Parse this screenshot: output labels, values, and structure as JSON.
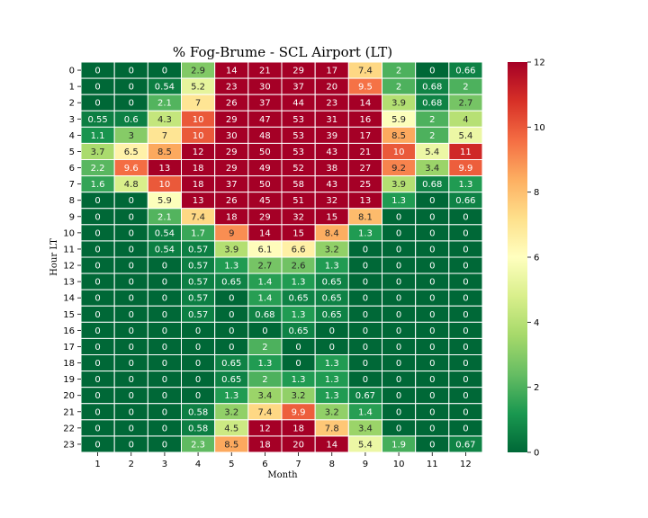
{
  "chart_data": {
    "type": "heatmap",
    "title": "% Fog-Brume - SCL Airport (LT)",
    "xlabel": "Month",
    "ylabel": "Hour LT",
    "x_categories": [
      "1",
      "2",
      "3",
      "4",
      "5",
      "6",
      "7",
      "8",
      "9",
      "10",
      "11",
      "12"
    ],
    "y_categories": [
      "0",
      "1",
      "2",
      "3",
      "4",
      "5",
      "6",
      "7",
      "8",
      "9",
      "10",
      "11",
      "12",
      "13",
      "14",
      "15",
      "16",
      "17",
      "18",
      "19",
      "20",
      "21",
      "22",
      "23"
    ],
    "values": [
      [
        "0",
        "0",
        "0",
        "2.9",
        "14",
        "21",
        "29",
        "17",
        "7.4",
        "2",
        "0",
        "0.66"
      ],
      [
        "0",
        "0",
        "0.54",
        "5.2",
        "23",
        "30",
        "37",
        "20",
        "9.5",
        "2",
        "0.68",
        "2"
      ],
      [
        "0",
        "0",
        "2.1",
        "7",
        "26",
        "37",
        "44",
        "23",
        "14",
        "3.9",
        "0.68",
        "2.7"
      ],
      [
        "0.55",
        "0.6",
        "4.3",
        "10",
        "29",
        "47",
        "53",
        "31",
        "16",
        "5.9",
        "2",
        "4"
      ],
      [
        "1.1",
        "3",
        "7",
        "10",
        "30",
        "48",
        "53",
        "39",
        "17",
        "8.5",
        "2",
        "5.4"
      ],
      [
        "3.7",
        "6.5",
        "8.5",
        "12",
        "29",
        "50",
        "53",
        "43",
        "21",
        "10",
        "5.4",
        "11"
      ],
      [
        "2.2",
        "9.6",
        "13",
        "18",
        "29",
        "49",
        "52",
        "38",
        "27",
        "9.2",
        "3.4",
        "9.9"
      ],
      [
        "1.6",
        "4.8",
        "10",
        "18",
        "37",
        "50",
        "58",
        "43",
        "25",
        "3.9",
        "0.68",
        "1.3"
      ],
      [
        "0",
        "0",
        "5.9",
        "13",
        "26",
        "45",
        "51",
        "32",
        "13",
        "1.3",
        "0",
        "0.66"
      ],
      [
        "0",
        "0",
        "2.1",
        "7.4",
        "18",
        "29",
        "32",
        "15",
        "8.1",
        "0",
        "0",
        "0"
      ],
      [
        "0",
        "0",
        "0.54",
        "1.7",
        "9",
        "14",
        "15",
        "8.4",
        "1.3",
        "0",
        "0",
        "0"
      ],
      [
        "0",
        "0",
        "0.54",
        "0.57",
        "3.9",
        "6.1",
        "6.6",
        "3.2",
        "0",
        "0",
        "0",
        "0"
      ],
      [
        "0",
        "0",
        "0",
        "0.57",
        "1.3",
        "2.7",
        "2.6",
        "1.3",
        "0",
        "0",
        "0",
        "0"
      ],
      [
        "0",
        "0",
        "0",
        "0.57",
        "0.65",
        "1.4",
        "1.3",
        "0.65",
        "0",
        "0",
        "0",
        "0"
      ],
      [
        "0",
        "0",
        "0",
        "0.57",
        "0",
        "1.4",
        "0.65",
        "0.65",
        "0",
        "0",
        "0",
        "0"
      ],
      [
        "0",
        "0",
        "0",
        "0.57",
        "0",
        "0.68",
        "1.3",
        "0.65",
        "0",
        "0",
        "0",
        "0"
      ],
      [
        "0",
        "0",
        "0",
        "0",
        "0",
        "0",
        "0.65",
        "0",
        "0",
        "0",
        "0",
        "0"
      ],
      [
        "0",
        "0",
        "0",
        "0",
        "0",
        "2",
        "0",
        "0",
        "0",
        "0",
        "0",
        "0"
      ],
      [
        "0",
        "0",
        "0",
        "0",
        "0.65",
        "1.3",
        "0",
        "1.3",
        "0",
        "0",
        "0",
        "0"
      ],
      [
        "0",
        "0",
        "0",
        "0",
        "0.65",
        "2",
        "1.3",
        "1.3",
        "0",
        "0",
        "0",
        "0"
      ],
      [
        "0",
        "0",
        "0",
        "0",
        "1.3",
        "3.4",
        "3.2",
        "1.3",
        "0.67",
        "0",
        "0",
        "0"
      ],
      [
        "0",
        "0",
        "0",
        "0.58",
        "3.2",
        "7.4",
        "9.9",
        "3.2",
        "1.4",
        "0",
        "0",
        "0"
      ],
      [
        "0",
        "0",
        "0",
        "0.58",
        "4.5",
        "12",
        "18",
        "7.8",
        "3.4",
        "0",
        "0",
        "0"
      ],
      [
        "0",
        "0",
        "0",
        "2.3",
        "8.5",
        "18",
        "20",
        "14",
        "5.4",
        "1.9",
        "0",
        "0.67"
      ]
    ],
    "colormap": "RdYlGn_r",
    "color_range": [
      0,
      12
    ],
    "colorbar_ticks": [
      "0",
      "2",
      "4",
      "6",
      "8",
      "10",
      "12"
    ]
  }
}
